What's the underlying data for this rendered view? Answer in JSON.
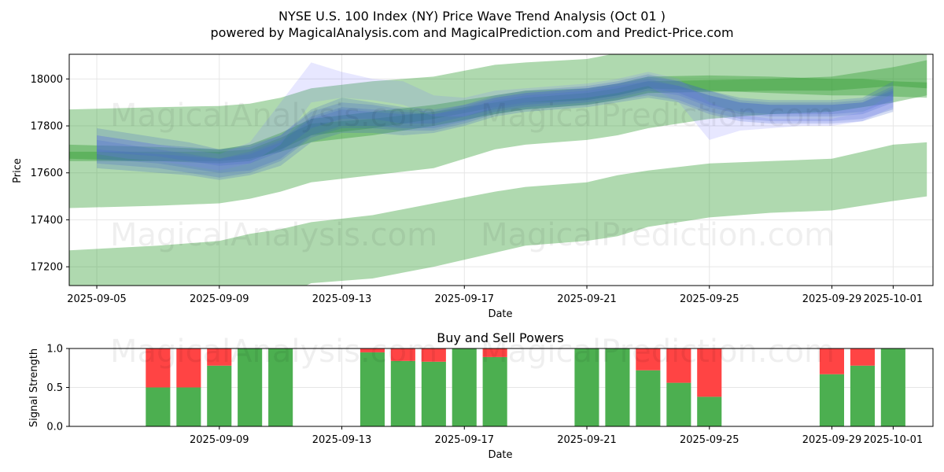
{
  "chart_data": [
    {
      "type": "area",
      "title": "NYSE U.S. 100 Index (NY) Price Wave Trend Analysis (Oct 01 )",
      "subtitle": "powered by MagicalAnalysis.com and MagicalPrediction.com and Predict-Price.com",
      "xlabel": "Date",
      "ylabel": "Price",
      "xlim": [
        -0.9,
        27.3
      ],
      "ylim": [
        17120,
        18105
      ],
      "x_ticks": [
        {
          "label": "2025-09-05",
          "x": 0
        },
        {
          "label": "2025-09-09",
          "x": 4
        },
        {
          "label": "2025-09-13",
          "x": 8
        },
        {
          "label": "2025-09-17",
          "x": 12
        },
        {
          "label": "2025-09-21",
          "x": 16
        },
        {
          "label": "2025-09-25",
          "x": 20
        },
        {
          "label": "2025-09-29",
          "x": 24
        },
        {
          "label": "2025-10-01",
          "x": 26
        }
      ],
      "y_ticks": [
        17200,
        17400,
        17600,
        17800,
        18000
      ],
      "grid": true,
      "series": [
        {
          "name": "green-band-wide-upper",
          "kind": "green",
          "x": [
            -0.9,
            2,
            4,
            5,
            6,
            7,
            9,
            11,
            13,
            14,
            16,
            17,
            18,
            20,
            22,
            24,
            25,
            26,
            27.1
          ],
          "upper": [
            17870,
            17880,
            17885,
            17895,
            17920,
            17960,
            17990,
            18010,
            18060,
            18070,
            18085,
            18110,
            18110,
            18110,
            18110,
            18110,
            18110,
            18110,
            18110
          ],
          "lower": [
            17450,
            17460,
            17470,
            17490,
            17520,
            17560,
            17590,
            17620,
            17700,
            17720,
            17740,
            17760,
            17790,
            17830,
            17850,
            17860,
            17880,
            17900,
            17930
          ]
        },
        {
          "name": "green-band-wide-lower",
          "kind": "green",
          "x": [
            -0.9,
            2,
            4,
            5,
            6,
            7,
            9,
            11,
            13,
            14,
            16,
            17,
            18,
            20,
            22,
            24,
            25,
            26,
            27.1
          ],
          "upper": [
            17270,
            17290,
            17310,
            17340,
            17360,
            17390,
            17420,
            17470,
            17520,
            17540,
            17560,
            17590,
            17610,
            17640,
            17650,
            17660,
            17690,
            17720,
            17730
          ],
          "lower": [
            16950,
            16960,
            16970,
            17000,
            17070,
            17130,
            17150,
            17200,
            17260,
            17290,
            17310,
            17330,
            17370,
            17410,
            17430,
            17440,
            17460,
            17480,
            17500
          ]
        },
        {
          "name": "green-band-core-1",
          "kind": "green",
          "x": [
            -0.9,
            2,
            4,
            5,
            6,
            7,
            9,
            11,
            13,
            14,
            16,
            17,
            18,
            20,
            22,
            24,
            25,
            26,
            27.1
          ],
          "upper": [
            17690,
            17690,
            17690,
            17700,
            17750,
            17810,
            17830,
            17860,
            17900,
            17920,
            17940,
            17960,
            17990,
            17995,
            18000,
            18010,
            18030,
            18050,
            18080
          ],
          "lower": [
            17650,
            17650,
            17650,
            17660,
            17690,
            17730,
            17760,
            17800,
            17850,
            17870,
            17890,
            17910,
            17940,
            17945,
            17950,
            17950,
            17960,
            17970,
            17960
          ]
        },
        {
          "name": "green-band-core-2",
          "kind": "green",
          "x": [
            -0.9,
            2,
            4,
            5,
            6,
            7,
            9,
            11,
            13,
            14,
            16,
            17,
            18,
            20,
            22,
            24,
            25,
            26,
            27.1
          ],
          "upper": [
            17720,
            17710,
            17700,
            17720,
            17770,
            17830,
            17860,
            17890,
            17930,
            17950,
            17960,
            17980,
            18010,
            18015,
            18010,
            18000,
            18000,
            17990,
            17985
          ],
          "lower": [
            17660,
            17650,
            17640,
            17650,
            17700,
            17760,
            17790,
            17830,
            17880,
            17900,
            17910,
            17930,
            17960,
            17950,
            17940,
            17930,
            17930,
            17925,
            17920
          ]
        },
        {
          "name": "blue-band-1",
          "kind": "blue",
          "x": [
            0,
            1,
            2,
            3,
            4,
            5,
            6,
            7,
            8,
            9,
            10,
            11,
            12,
            13,
            14,
            15,
            16,
            17,
            18,
            19,
            20,
            21,
            22,
            23,
            24,
            25,
            26
          ],
          "upper": [
            17760,
            17740,
            17720,
            17710,
            17700,
            17720,
            17760,
            17870,
            17920,
            17900,
            17880,
            17870,
            17890,
            17930,
            17950,
            17960,
            17970,
            17990,
            18020,
            17990,
            17950,
            17920,
            17910,
            17910,
            17910,
            17920,
            17990
          ],
          "lower": [
            17660,
            17650,
            17640,
            17620,
            17600,
            17610,
            17660,
            17760,
            17800,
            17800,
            17790,
            17790,
            17820,
            17860,
            17880,
            17890,
            17900,
            17920,
            17950,
            17930,
            17880,
            17850,
            17840,
            17840,
            17840,
            17850,
            17900
          ]
        },
        {
          "name": "blue-band-2",
          "kind": "blue",
          "x": [
            0,
            1,
            2,
            3,
            4,
            5,
            6,
            7,
            8,
            9,
            10,
            11,
            12,
            13,
            14,
            15,
            16,
            17,
            18,
            19,
            20,
            21,
            22,
            23,
            24,
            25,
            26
          ],
          "upper": [
            17740,
            17720,
            17700,
            17680,
            17660,
            17690,
            17740,
            17840,
            17880,
            17870,
            17860,
            17850,
            17880,
            17920,
            17940,
            17950,
            17960,
            17980,
            18000,
            17970,
            17930,
            17900,
            17890,
            17890,
            17890,
            17900,
            17960
          ],
          "lower": [
            17640,
            17630,
            17620,
            17600,
            17580,
            17600,
            17650,
            17750,
            17790,
            17790,
            17780,
            17780,
            17810,
            17850,
            17870,
            17880,
            17890,
            17910,
            17930,
            17910,
            17860,
            17830,
            17820,
            17820,
            17820,
            17830,
            17870
          ]
        },
        {
          "name": "blue-band-3",
          "kind": "blue",
          "x": [
            0,
            1,
            2,
            3,
            4,
            5,
            6,
            7,
            8,
            9,
            10,
            11,
            12,
            13,
            14,
            15,
            16,
            17,
            18,
            19,
            20,
            21,
            22,
            23,
            24,
            25,
            26
          ],
          "upper": [
            17790,
            17770,
            17750,
            17730,
            17700,
            17710,
            17760,
            17860,
            17900,
            17890,
            17870,
            17860,
            17890,
            17920,
            17940,
            17950,
            17960,
            17980,
            18010,
            17990,
            17950,
            17910,
            17900,
            17900,
            17900,
            17910,
            17970
          ],
          "lower": [
            17690,
            17680,
            17670,
            17650,
            17630,
            17640,
            17690,
            17790,
            17830,
            17830,
            17810,
            17810,
            17840,
            17870,
            17890,
            17900,
            17910,
            17930,
            17960,
            17940,
            17890,
            17860,
            17850,
            17850,
            17850,
            17860,
            17910
          ]
        },
        {
          "name": "blue-band-4",
          "kind": "blue",
          "x": [
            0,
            1,
            2,
            3,
            4,
            5,
            6,
            7,
            8,
            9,
            10,
            11,
            12,
            13,
            14,
            15,
            16,
            17,
            18,
            19,
            20,
            21,
            22,
            23,
            24,
            25,
            26
          ],
          "upper": [
            17700,
            17690,
            17680,
            17670,
            17660,
            17680,
            17730,
            17830,
            17870,
            17860,
            17850,
            17850,
            17870,
            17910,
            17930,
            17940,
            17950,
            17970,
            17990,
            17970,
            17930,
            17900,
            17890,
            17890,
            17890,
            17900,
            17950
          ],
          "lower": [
            17620,
            17610,
            17600,
            17590,
            17570,
            17590,
            17630,
            17730,
            17770,
            17770,
            17760,
            17770,
            17800,
            17840,
            17860,
            17870,
            17880,
            17900,
            17920,
            17900,
            17850,
            17820,
            17810,
            17810,
            17810,
            17820,
            17860
          ]
        },
        {
          "name": "blue-spike-band",
          "kind": "blue-light",
          "x": [
            0,
            1,
            2,
            3,
            4,
            5,
            6,
            7,
            8,
            9,
            10,
            11,
            12,
            13,
            14,
            15,
            16,
            17,
            18,
            19,
            20,
            21,
            22,
            23,
            24,
            25,
            26
          ],
          "upper": [
            17760,
            17740,
            17720,
            17700,
            17680,
            17730,
            17900,
            18070,
            18030,
            18000,
            17990,
            17930,
            17920,
            17950,
            17960,
            17970,
            17980,
            18000,
            18030,
            18000,
            17900,
            17850,
            17830,
            17830,
            17830,
            17860,
            17940
          ],
          "lower": [
            17680,
            17660,
            17650,
            17630,
            17610,
            17640,
            17720,
            17900,
            17920,
            17910,
            17890,
            17840,
            17840,
            17880,
            17900,
            17910,
            17920,
            17940,
            17970,
            17900,
            17740,
            17780,
            17790,
            17800,
            17800,
            17820,
            17880
          ]
        }
      ]
    },
    {
      "type": "bar",
      "title": "Buy and Sell Powers",
      "xlabel": "Date",
      "ylabel": "Signal Strength",
      "xlim": [
        -0.9,
        27.3
      ],
      "ylim": [
        0,
        1.0
      ],
      "y_ticks": [
        0.0,
        0.5,
        1.0
      ],
      "y_tick_labels": [
        "0.0",
        "0.5",
        "1.0"
      ],
      "x_ticks": [
        {
          "label": "2025-09-09",
          "x": 4
        },
        {
          "label": "2025-09-13",
          "x": 8
        },
        {
          "label": "2025-09-17",
          "x": 12
        },
        {
          "label": "2025-09-21",
          "x": 16
        },
        {
          "label": "2025-09-25",
          "x": 20
        },
        {
          "label": "2025-09-29",
          "x": 24
        },
        {
          "label": "2025-10-01",
          "x": 26
        }
      ],
      "grid": true,
      "series": [
        {
          "name": "Buy",
          "color": "#4caf50"
        },
        {
          "name": "Sell",
          "color": "#ff4444"
        }
      ],
      "bars": [
        {
          "x": 2,
          "buy": 0.5,
          "sell": 0.5
        },
        {
          "x": 3,
          "buy": 0.5,
          "sell": 0.5
        },
        {
          "x": 4,
          "buy": 0.78,
          "sell": 0.22
        },
        {
          "x": 5,
          "buy": 1.0,
          "sell": 0.0
        },
        {
          "x": 6,
          "buy": 1.0,
          "sell": 0.0
        },
        {
          "x": 9,
          "buy": 0.95,
          "sell": 0.05
        },
        {
          "x": 10,
          "buy": 0.84,
          "sell": 0.16
        },
        {
          "x": 11,
          "buy": 0.83,
          "sell": 0.17
        },
        {
          "x": 12,
          "buy": 1.0,
          "sell": 0.0
        },
        {
          "x": 13,
          "buy": 0.89,
          "sell": 0.11
        },
        {
          "x": 16,
          "buy": 1.0,
          "sell": 0.0
        },
        {
          "x": 17,
          "buy": 1.0,
          "sell": 0.0
        },
        {
          "x": 18,
          "buy": 0.72,
          "sell": 0.28
        },
        {
          "x": 19,
          "buy": 0.56,
          "sell": 0.44
        },
        {
          "x": 20,
          "buy": 0.38,
          "sell": 0.62
        },
        {
          "x": 24,
          "buy": 0.67,
          "sell": 0.33
        },
        {
          "x": 25,
          "buy": 0.78,
          "sell": 0.22
        },
        {
          "x": 26,
          "buy": 1.0,
          "sell": 0.0
        }
      ]
    }
  ],
  "watermarks": [
    "MagicalAnalysis.com",
    "MagicalPrediction.com"
  ],
  "colors": {
    "green": "#2e9a2e",
    "blue": "#3a5fc8",
    "blue_light": "#7b7bff",
    "grid": "#e6e6e6",
    "axis": "#000000"
  }
}
